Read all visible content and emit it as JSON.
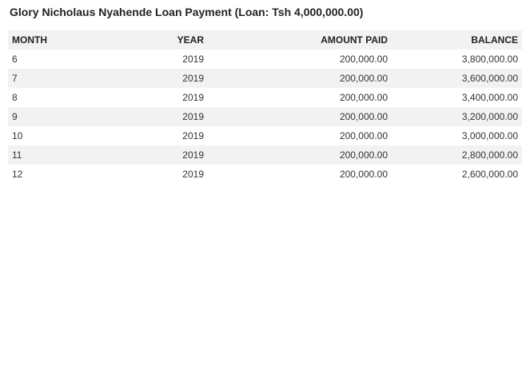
{
  "page": {
    "title": "Glory Nicholaus Nyahende Loan Payment (Loan: Tsh 4,000,000.00)"
  },
  "table": {
    "headers": {
      "month": "MONTH",
      "year": "YEAR",
      "amount_paid": "AMOUNT PAID",
      "balance": "BALANCE"
    },
    "rows": [
      {
        "month": "6",
        "year": "2019",
        "amount_paid": "200,000.00",
        "balance": "3,800,000.00"
      },
      {
        "month": "7",
        "year": "2019",
        "amount_paid": "200,000.00",
        "balance": "3,600,000.00"
      },
      {
        "month": "8",
        "year": "2019",
        "amount_paid": "200,000.00",
        "balance": "3,400,000.00"
      },
      {
        "month": "9",
        "year": "2019",
        "amount_paid": "200,000.00",
        "balance": "3,200,000.00"
      },
      {
        "month": "10",
        "year": "2019",
        "amount_paid": "200,000.00",
        "balance": "3,000,000.00"
      },
      {
        "month": "11",
        "year": "2019",
        "amount_paid": "200,000.00",
        "balance": "2,800,000.00"
      },
      {
        "month": "12",
        "year": "2019",
        "amount_paid": "200,000.00",
        "balance": "2,600,000.00"
      }
    ]
  }
}
